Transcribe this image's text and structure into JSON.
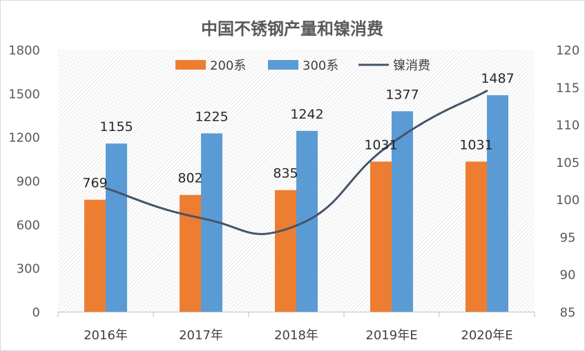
{
  "chart_data": {
    "type": "bar",
    "title": "中国不锈钢产量和镍消费",
    "categories": [
      "2016年",
      "2017年",
      "2018年",
      "2019年E",
      "2020年E"
    ],
    "series": [
      {
        "name": "200系",
        "type": "bar",
        "axis": "left",
        "color": "#ED7D31",
        "values": [
          769,
          802,
          835,
          1031,
          1031
        ]
      },
      {
        "name": "300系",
        "type": "bar",
        "axis": "left",
        "color": "#5B9BD5",
        "values": [
          1155,
          1225,
          1242,
          1377,
          1487
        ]
      },
      {
        "name": "镍消费",
        "type": "line",
        "axis": "right",
        "color": "#44546A",
        "values": [
          101.5,
          97.5,
          96.5,
          107.5,
          114.5
        ]
      }
    ],
    "y_left": {
      "min": 0,
      "max": 1800,
      "ticks": [
        "0",
        "300",
        "600",
        "900",
        "1200",
        "1500",
        "1800"
      ]
    },
    "y_right": {
      "min": 85,
      "max": 120,
      "ticks": [
        "85",
        "90",
        "95",
        "100",
        "105",
        "110",
        "115",
        "120"
      ]
    },
    "grid": false,
    "legend_position": "top"
  }
}
